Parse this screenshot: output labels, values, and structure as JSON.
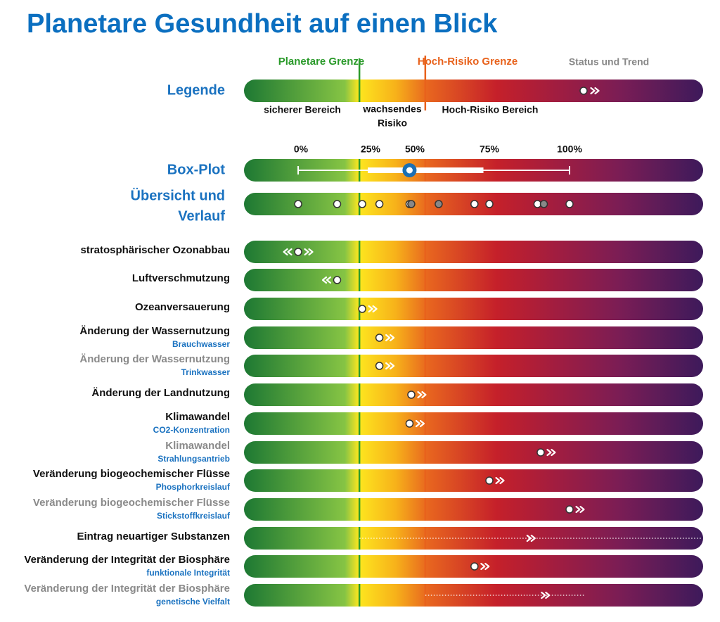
{
  "chart_data": {
    "type": "strip",
    "title": "Planetare Gesundheit auf einen Blick",
    "xticks": [
      {
        "value": 0,
        "label": "0%"
      },
      {
        "value": 25,
        "label": "25%"
      },
      {
        "value": 50,
        "label": "50%"
      },
      {
        "value": 75,
        "label": "75%"
      },
      {
        "value": 100,
        "label": "100%"
      }
    ],
    "planetary_boundary": 21,
    "high_risk_boundary": 53.5,
    "legend": {
      "title": "Legende",
      "planetary_label": "Planetare Grenze",
      "high_risk_label": "Hoch-Risiko Grenze",
      "status_label": "Status und Trend",
      "safe_label": "sicherer Bereich",
      "rising_label": [
        "wachsendes",
        "Risiko"
      ],
      "high_label": "Hoch-Risiko Bereich"
    },
    "boxplot": {
      "label": "Box-Plot",
      "min": -1,
      "q1": 24,
      "median": 47,
      "q3": 73,
      "max": 100
    },
    "overview": {
      "label": [
        "Übersicht und",
        "Verlauf"
      ],
      "series": [
        {
          "color": "#ffffff",
          "values": [
            -1,
            13,
            22,
            30,
            47,
            70,
            75,
            90,
            100
          ]
        },
        {
          "color": "#888888",
          "values": [
            48,
            58,
            92
          ]
        }
      ]
    },
    "rows": [
      {
        "label": "stratosphärischer Ozonabbau",
        "label_color": "#111111",
        "value": -1,
        "trend": "both"
      },
      {
        "label": "Luftverschmutzung",
        "label_color": "#111111",
        "value": 13,
        "trend": "left"
      },
      {
        "label": "Ozeanversauerung",
        "label_color": "#111111",
        "value": 22,
        "trend": "right"
      },
      {
        "label": "Änderung der Wassernutzung",
        "sublabel": "Brauchwasser",
        "label_color": "#111111",
        "value": 30,
        "trend": "right"
      },
      {
        "label": "Änderung der Wassernutzung",
        "sublabel": "Trinkwasser",
        "label_color": "#8a8a8a",
        "value": 30,
        "trend": "right"
      },
      {
        "label": "Änderung der Landnutzung",
        "label_color": "#111111",
        "value": 48,
        "trend": "right"
      },
      {
        "label": "Klimawandel",
        "sublabel": "CO2-Konzentration",
        "label_color": "#111111",
        "value": 47,
        "trend": "right"
      },
      {
        "label": "Klimawandel",
        "sublabel": "Strahlungsantrieb",
        "label_color": "#8a8a8a",
        "value": 91,
        "trend": "right"
      },
      {
        "label": "Veränderung biogeochemischer Flüsse",
        "sublabel": "Phosphorkreislauf",
        "label_color": "#111111",
        "value": 75,
        "trend": "right"
      },
      {
        "label": "Veränderung biogeochemischer Flüsse",
        "sublabel": "Stickstoffkreislauf",
        "label_color": "#8a8a8a",
        "value": 100,
        "trend": "right"
      },
      {
        "label": "Eintrag neuartiger Substanzen",
        "label_color": "#111111",
        "value": null,
        "trend": "right",
        "range": [
          21,
          141
        ],
        "marker": 88
      },
      {
        "label": "Veränderung der Integrität der Biosphäre",
        "sublabel": "funktionale Integrität",
        "label_color": "#111111",
        "value": 70,
        "trend": "right"
      },
      {
        "label": "Veränderung der Integrität der Biosphäre",
        "sublabel": "genetische Vielfalt",
        "label_color": "#8a8a8a",
        "value": null,
        "trend": "right",
        "range": [
          53.5,
          105
        ],
        "marker": 92.5
      }
    ]
  }
}
